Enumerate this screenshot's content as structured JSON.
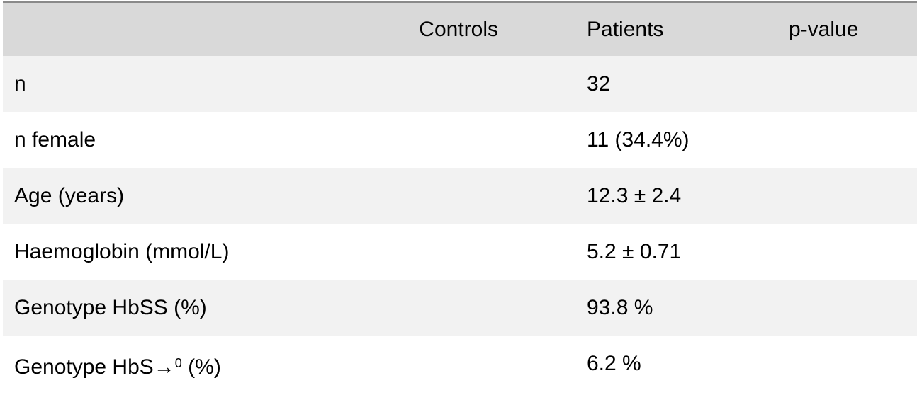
{
  "header": {
    "label": "",
    "controls": "Controls",
    "patients": "Patients",
    "p_value": "p-value"
  },
  "rows": [
    {
      "label": "n",
      "controls": "",
      "patients": "32",
      "p_value": ""
    },
    {
      "label": "n female",
      "controls": "",
      "patients": "11 (34.4%)",
      "p_value": ""
    },
    {
      "label": "Age (years)",
      "controls": "",
      "patients": "12.3 ± 2.4",
      "p_value": ""
    },
    {
      "label": "Haemoglobin (mmol/L)",
      "controls": "",
      "patients": "5.2 ± 0.71",
      "p_value": ""
    },
    {
      "label": "Genotype HbSS (%)",
      "controls": "",
      "patients": "93.8 %",
      "p_value": ""
    },
    {
      "label_prefix": "Genotype HbS→",
      "label_sup": "0",
      "label_suffix": " (%)",
      "controls": "",
      "patients": "6.2 %",
      "p_value": ""
    }
  ],
  "colors": {
    "header_bg": "#d9d9d9",
    "stripe_bg": "#f2f2f2",
    "border": "#8a8a8a"
  }
}
